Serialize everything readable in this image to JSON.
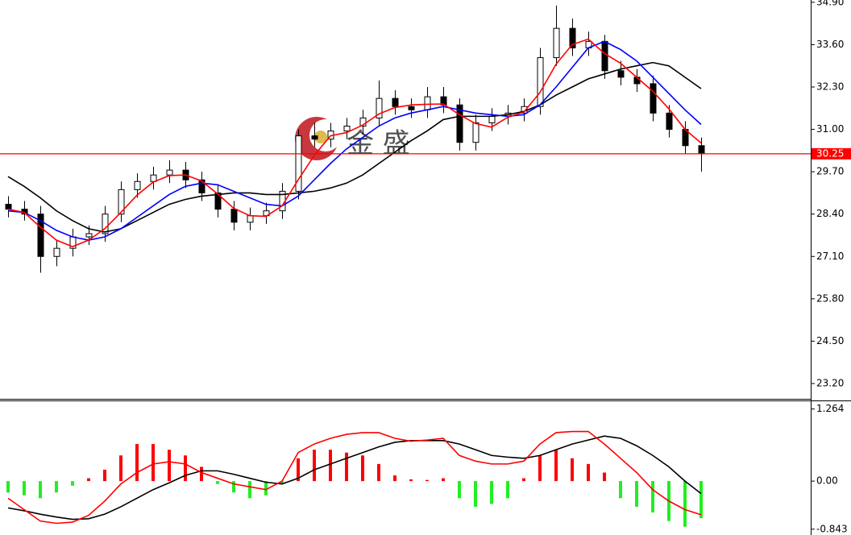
{
  "chart_data": [
    {
      "type": "candlestick",
      "watermark": "金 盛",
      "open": [
        28.7,
        28.55,
        28.4,
        27.1,
        27.35,
        27.7,
        27.8,
        28.4,
        29.15,
        29.4,
        29.6,
        29.75,
        29.45,
        29.05,
        28.55,
        28.15,
        28.35,
        28.5,
        29.1,
        30.8,
        30.7,
        30.95,
        31.1,
        31.35,
        31.95,
        31.7,
        31.6,
        32.0,
        31.75,
        30.6,
        31.2,
        31.4,
        31.5,
        31.7,
        33.2,
        34.1,
        33.5,
        33.7,
        32.8,
        32.6,
        32.4,
        31.5,
        31.0,
        30.5
      ],
      "high": [
        28.95,
        28.8,
        28.65,
        27.6,
        27.95,
        28.05,
        28.65,
        29.4,
        29.65,
        29.85,
        30.05,
        30.0,
        29.7,
        29.3,
        28.8,
        28.6,
        28.75,
        29.35,
        31.0,
        31.2,
        31.2,
        31.35,
        31.6,
        32.5,
        32.2,
        31.95,
        32.3,
        32.3,
        31.95,
        31.45,
        31.65,
        31.75,
        31.95,
        33.5,
        34.8,
        34.4,
        34.0,
        33.9,
        33.1,
        32.85,
        32.65,
        31.75,
        31.25,
        30.75
      ],
      "low": [
        28.3,
        28.2,
        26.6,
        26.8,
        27.1,
        27.45,
        27.55,
        28.15,
        28.9,
        29.15,
        29.35,
        29.2,
        28.8,
        28.3,
        27.9,
        27.9,
        28.1,
        28.25,
        28.85,
        30.45,
        30.45,
        30.7,
        30.85,
        31.1,
        31.45,
        31.35,
        31.35,
        31.5,
        30.35,
        30.35,
        30.95,
        31.15,
        31.25,
        31.45,
        32.95,
        33.25,
        33.25,
        32.55,
        32.35,
        32.15,
        31.25,
        30.75,
        30.25,
        29.7
      ],
      "close": [
        28.55,
        28.4,
        27.1,
        27.35,
        27.7,
        27.8,
        28.4,
        29.15,
        29.4,
        29.6,
        29.75,
        29.45,
        29.05,
        28.55,
        28.15,
        28.35,
        28.5,
        29.1,
        30.8,
        30.7,
        30.95,
        31.1,
        31.35,
        31.95,
        31.7,
        31.6,
        32.0,
        31.75,
        30.6,
        31.2,
        31.4,
        31.5,
        31.7,
        33.2,
        34.1,
        33.5,
        33.7,
        32.8,
        32.6,
        32.4,
        31.5,
        31.0,
        30.5,
        30.25
      ],
      "series": [
        {
          "color": "#000000",
          "values": [
            29.55,
            29.25,
            28.9,
            28.5,
            28.2,
            27.95,
            27.85,
            27.95,
            28.2,
            28.45,
            28.7,
            28.85,
            28.95,
            29.0,
            29.05,
            29.05,
            29.0,
            29.0,
            29.05,
            29.1,
            29.2,
            29.35,
            29.6,
            29.95,
            30.3,
            30.65,
            30.95,
            31.3,
            31.4,
            31.4,
            31.4,
            31.45,
            31.55,
            31.75,
            32.05,
            32.3,
            32.55,
            32.7,
            32.85,
            32.95,
            33.05,
            32.95,
            32.6,
            32.25
          ]
        },
        {
          "color": "#0000ff",
          "values": [
            28.5,
            28.45,
            28.2,
            27.9,
            27.7,
            27.6,
            27.7,
            27.95,
            28.3,
            28.65,
            29.0,
            29.25,
            29.35,
            29.3,
            29.1,
            28.9,
            28.7,
            28.65,
            28.95,
            29.45,
            29.95,
            30.4,
            30.75,
            31.1,
            31.35,
            31.5,
            31.6,
            31.7,
            31.6,
            31.5,
            31.45,
            31.4,
            31.45,
            31.75,
            32.3,
            32.9,
            33.5,
            33.7,
            33.45,
            33.1,
            32.6,
            32.1,
            31.6,
            31.15
          ]
        },
        {
          "color": "#ff0000",
          "values": [
            28.55,
            28.45,
            28.0,
            27.6,
            27.4,
            27.6,
            27.95,
            28.45,
            28.98,
            29.38,
            29.58,
            29.6,
            29.42,
            29.02,
            28.58,
            28.35,
            28.33,
            28.65,
            29.45,
            30.2,
            30.8,
            30.9,
            31.13,
            31.47,
            31.67,
            31.75,
            31.77,
            31.78,
            31.45,
            31.18,
            31.07,
            31.37,
            31.53,
            32.13,
            33.0,
            33.6,
            33.77,
            33.33,
            33.03,
            32.6,
            32.17,
            31.63,
            31.0,
            30.58
          ]
        }
      ],
      "price_line": {
        "value": 30.25,
        "color": "#ff0000"
      },
      "ylim": [
        22.73,
        34.97
      ],
      "yticks": [
        {
          "value": 34.9,
          "label": "34.90"
        },
        {
          "value": 33.6,
          "label": "33.60"
        },
        {
          "value": 32.3,
          "label": "32.30"
        },
        {
          "value": 31,
          "label": "31.00"
        },
        {
          "value": 29.7,
          "label": "29.70"
        },
        {
          "value": 28.4,
          "label": "28.40"
        },
        {
          "value": 27.1,
          "label": "27.10"
        },
        {
          "value": 25.8,
          "label": "25.80"
        },
        {
          "value": 24.5,
          "label": "24.50"
        },
        {
          "value": 23.2,
          "label": "23.20"
        }
      ]
    },
    {
      "type": "macd",
      "values": [
        -0.2,
        -0.25,
        -0.3,
        -0.2,
        -0.08,
        0.05,
        0.2,
        0.45,
        0.65,
        0.65,
        0.55,
        0.45,
        0.25,
        -0.05,
        -0.2,
        -0.3,
        -0.25,
        -0.05,
        0.4,
        0.55,
        0.55,
        0.5,
        0.45,
        0.3,
        0.1,
        0.03,
        0.02,
        0.05,
        -0.3,
        -0.45,
        -0.4,
        -0.3,
        0.05,
        0.45,
        0.55,
        0.4,
        0.3,
        0.15,
        -0.3,
        -0.45,
        -0.55,
        -0.7,
        -0.8,
        -0.65
      ],
      "positive_color": "#ff0000",
      "negative_color": "#22ee22",
      "series": [
        {
          "color": "#000000",
          "values": [
            -0.47,
            -0.52,
            -0.58,
            -0.63,
            -0.67,
            -0.66,
            -0.58,
            -0.45,
            -0.3,
            -0.15,
            -0.03,
            0.1,
            0.18,
            0.18,
            0.12,
            0.05,
            -0.02,
            -0.05,
            0.05,
            0.2,
            0.3,
            0.4,
            0.5,
            0.6,
            0.68,
            0.71,
            0.71,
            0.71,
            0.65,
            0.55,
            0.45,
            0.42,
            0.4,
            0.45,
            0.55,
            0.65,
            0.72,
            0.79,
            0.75,
            0.62,
            0.45,
            0.25,
            0.0,
            -0.22
          ]
        },
        {
          "color": "#ff0000",
          "values": [
            -0.3,
            -0.5,
            -0.7,
            -0.74,
            -0.72,
            -0.6,
            -0.35,
            -0.05,
            0.15,
            0.3,
            0.34,
            0.3,
            0.15,
            0.05,
            -0.05,
            -0.1,
            -0.15,
            0.0,
            0.5,
            0.65,
            0.75,
            0.82,
            0.85,
            0.85,
            0.75,
            0.7,
            0.72,
            0.75,
            0.45,
            0.35,
            0.3,
            0.3,
            0.35,
            0.65,
            0.85,
            0.87,
            0.87,
            0.65,
            0.4,
            0.15,
            -0.15,
            -0.35,
            -0.5,
            -0.59
          ]
        }
      ],
      "ylim": [
        -0.945,
        1.4
      ],
      "yticks": [
        1.264,
        {
          "value": 0,
          "label": "0.00"
        },
        -0.843
      ]
    }
  ]
}
